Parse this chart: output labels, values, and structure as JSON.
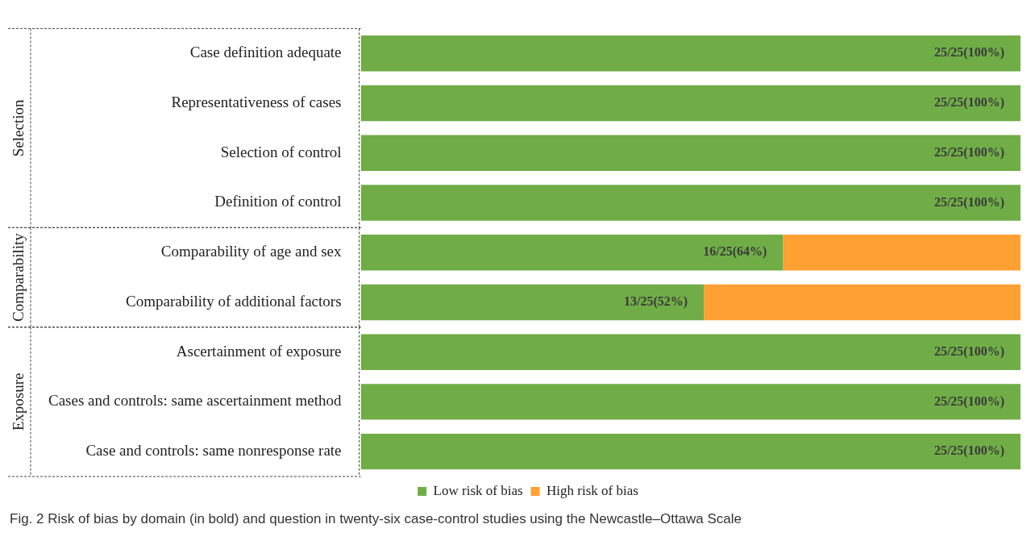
{
  "chart_data": {
    "type": "bar",
    "orientation": "horizontal",
    "stacked": true,
    "xlim": [
      0,
      100
    ],
    "categories": [
      "Case definition adequate",
      "Representativeness of cases",
      "Selection of control",
      "Definition of control",
      "Comparability of age and sex",
      "Comparability of additional factors",
      "Ascertainment of exposure",
      "Cases and controls: same ascertainment method",
      "Case and controls: same nonresponse rate"
    ],
    "series": [
      {
        "name": "Low risk of bias",
        "color": "#70ad47",
        "values": [
          100,
          100,
          100,
          100,
          64,
          52,
          100,
          100,
          100
        ],
        "value_labels": [
          "25/25(100%)",
          "25/25(100%)",
          "25/25(100%)",
          "25/25(100%)",
          "16/25(64%)",
          "13/25(52%)",
          "25/25(100%)",
          "25/25(100%)",
          "25/25(100%)"
        ]
      },
      {
        "name": "High risk of bias",
        "color": "#ffa033",
        "values": [
          0,
          0,
          0,
          0,
          36,
          48,
          0,
          0,
          0
        ]
      }
    ],
    "legend": "bottom",
    "grid": false,
    "annotations": [
      "Selection",
      "Comparability",
      "Exposure",
      "Fig. 2 Risk of bias by domain (in bold) and question in twenty-six case-control studies using the Newcastle–Ottawa Scale"
    ]
  }
}
